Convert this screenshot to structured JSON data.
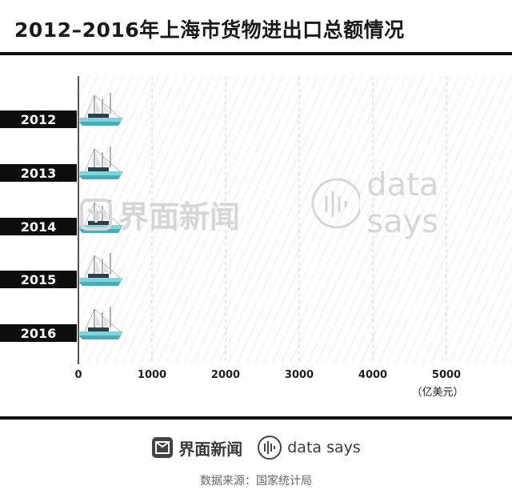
{
  "title": "2012–2016年上海市货物进出口总额情况",
  "footer": {
    "brand_cn": "界面新闻",
    "brand_en": "data says",
    "source": "数据来源：国家统计局"
  },
  "colors": {
    "title": "#1a1a1a",
    "rule": "#111111",
    "label_bg": "#0d0d0d",
    "label_text": "#ffffff",
    "hull_light": "#7fd4dc",
    "hull_dark": "#4aaab6",
    "grid_hatch": "#e3e3e3",
    "axis": "#555555"
  },
  "icons": [
    "ship-icon",
    "jiemian-logo-icon",
    "datasays-logo-icon"
  ],
  "chart_data": {
    "type": "bar",
    "orientation": "horizontal",
    "categories": [
      "2012",
      "2013",
      "2014",
      "2015",
      "2016"
    ],
    "values": [
      0,
      0,
      0,
      0,
      0
    ],
    "xlim": [
      0,
      6000
    ],
    "xticks": [
      "0",
      "1000",
      "2000",
      "3000",
      "4000",
      "5000"
    ],
    "unit": "（亿美元）",
    "grid": "diagonal hatch"
  }
}
